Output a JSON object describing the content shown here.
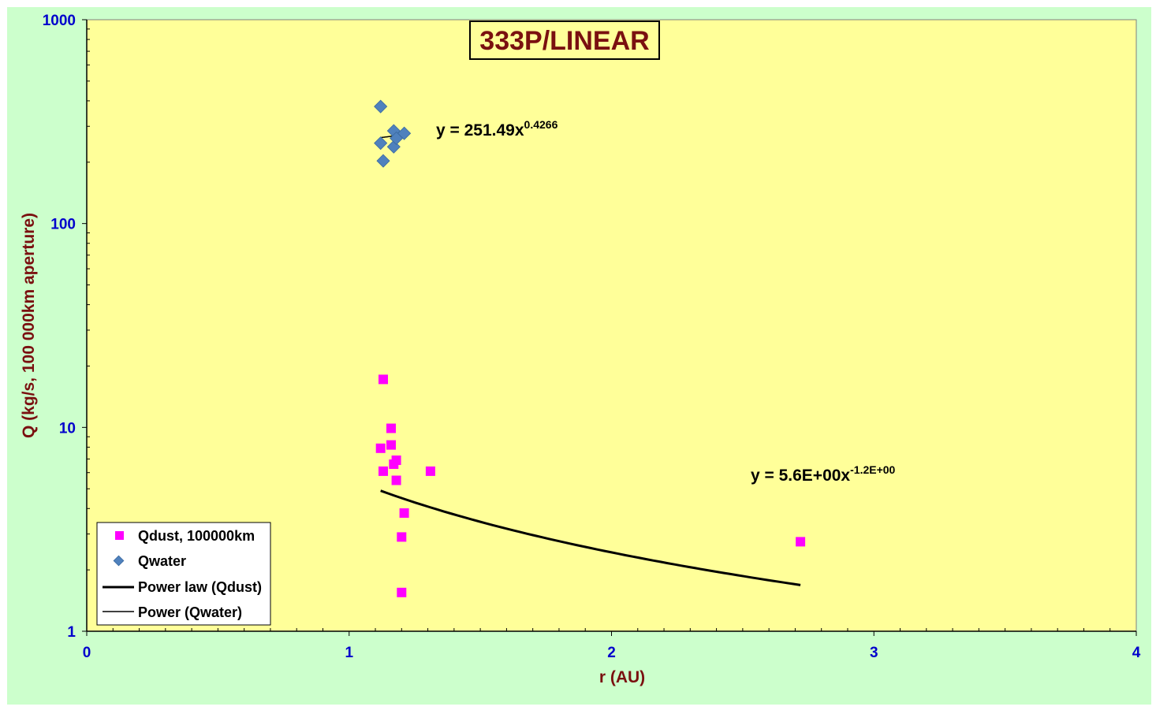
{
  "chart_data": {
    "type": "scatter",
    "title": "333P/LINEAR",
    "xlabel": "r (AU)",
    "ylabel": "Q (kg/s, 100 000km aperture)",
    "xlim": [
      0,
      4
    ],
    "ylim": [
      1,
      1000
    ],
    "y_scale": "log",
    "x_ticks": [
      "0",
      "1",
      "2",
      "3",
      "4"
    ],
    "y_ticks": [
      "1",
      "10",
      "100",
      "1000"
    ],
    "legend_position": "bottom-left",
    "colors": {
      "outer_background": "#ccffcc",
      "plot_background": "#ffff99",
      "qdust": "#ff00ff",
      "qwater": "#4f81bd",
      "fit_line": "#000000",
      "title_text": "#7a1010",
      "tick_text": "#0000cc"
    },
    "series": [
      {
        "name": "Qdust, 100000km",
        "marker": "square",
        "x": [
          1.12,
          1.13,
          1.13,
          1.16,
          1.16,
          1.17,
          1.18,
          1.18,
          1.2,
          1.2,
          1.21,
          1.31,
          2.72
        ],
        "y": [
          7.9,
          17.2,
          6.1,
          9.9,
          8.2,
          6.6,
          6.9,
          5.5,
          2.9,
          1.55,
          3.8,
          6.1,
          2.75
        ]
      },
      {
        "name": "Qwater",
        "marker": "diamond",
        "x": [
          1.12,
          1.12,
          1.13,
          1.17,
          1.17,
          1.18,
          1.21
        ],
        "y": [
          375,
          248,
          203,
          238,
          285,
          262,
          277
        ]
      }
    ],
    "trendlines": [
      {
        "name": "Power law (Qdust)",
        "equation": "y = 5.6E+00x",
        "exponent_label": "-1.2E+00",
        "coefficient": 5.6,
        "exponent": -1.2,
        "x_range": [
          1.12,
          2.72
        ],
        "style": "thick"
      },
      {
        "name": "Power (Qwater)",
        "equation": "y = 251.49x",
        "exponent_label": "0.4266",
        "coefficient": 251.49,
        "exponent": 0.4266,
        "x_range": [
          1.12,
          1.21
        ],
        "style": "thin"
      }
    ]
  }
}
